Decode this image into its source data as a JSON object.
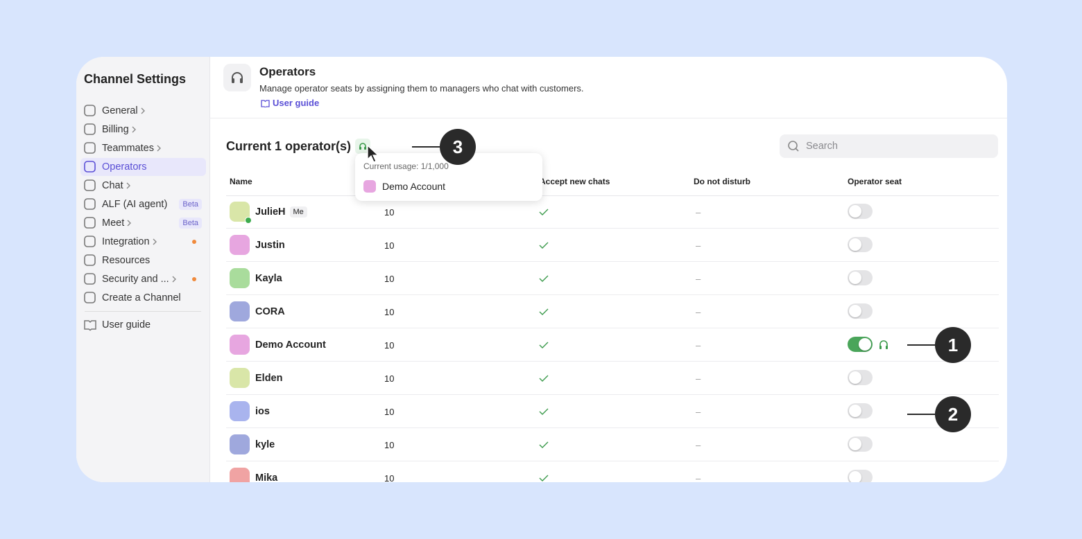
{
  "sidebar": {
    "title": "Channel Settings",
    "items": [
      {
        "label": "General",
        "expandable": true
      },
      {
        "label": "Billing",
        "expandable": true
      },
      {
        "label": "Teammates",
        "expandable": true
      },
      {
        "label": "Operators",
        "active": true
      },
      {
        "label": "Chat",
        "expandable": true
      },
      {
        "label": "ALF (AI agent)",
        "badge": "Beta"
      },
      {
        "label": "Meet",
        "expandable": true,
        "badge": "Beta"
      },
      {
        "label": "Integration",
        "expandable": true,
        "notification": true
      },
      {
        "label": "Resources"
      },
      {
        "label": "Security and ...",
        "expandable": true,
        "notification": true
      },
      {
        "label": "Create a Channel"
      }
    ],
    "footer": "User guide"
  },
  "header": {
    "title": "Operators",
    "description": "Manage operator seats by assigning them to managers who chat with customers.",
    "link": "User guide"
  },
  "section": {
    "title": "Current 1 operator(s)",
    "search_placeholder": "Search"
  },
  "tooltip": {
    "usage": "Current usage: 1/1,000",
    "member": "Demo Account"
  },
  "table": {
    "columns": [
      "Name",
      "Accept new chats",
      "Do not disturb",
      "Operator seat"
    ],
    "rows": [
      {
        "name": "JulieH",
        "badge": "Me",
        "limit": 10,
        "dnd": "–",
        "seat": false,
        "online": true,
        "avatar_color": "#d9e6a8"
      },
      {
        "name": "Justin",
        "limit": 10,
        "dnd": "–",
        "seat": false,
        "avatar_color": "#e7a6e0"
      },
      {
        "name": "Kayla",
        "limit": 10,
        "dnd": "–",
        "seat": false,
        "avatar_color": "#a9dc9c"
      },
      {
        "name": "CORA",
        "limit": 10,
        "dnd": "–",
        "seat": false,
        "avatar_color": "#9fa8dd"
      },
      {
        "name": "Demo Account",
        "limit": 10,
        "dnd": "–",
        "seat": true,
        "avatar_color": "#e7a6e0"
      },
      {
        "name": "Elden",
        "limit": 10,
        "dnd": "–",
        "seat": false,
        "avatar_color": "#d9e6a8"
      },
      {
        "name": "ios",
        "limit": 10,
        "dnd": "–",
        "seat": false,
        "avatar_color": "#a9b4ee"
      },
      {
        "name": "kyle",
        "limit": 10,
        "dnd": "–",
        "seat": false,
        "avatar_color": "#9fa8dd"
      },
      {
        "name": "Mika",
        "limit": 10,
        "dnd": "–",
        "seat": false,
        "avatar_color": "#f0a3a3"
      }
    ]
  },
  "callouts": [
    "1",
    "2",
    "3"
  ]
}
